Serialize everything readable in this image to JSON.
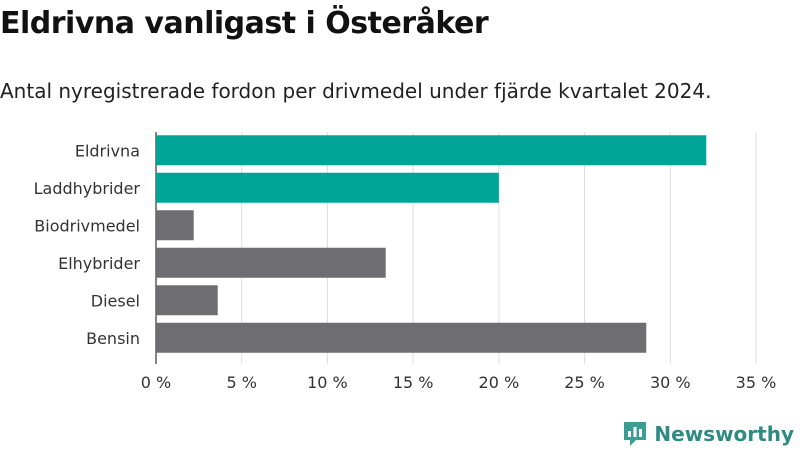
{
  "header": {
    "title": "Eldrivna vanligast i Österåker",
    "subtitle": "Antal nyregistrerade fordon per drivmedel under fjärde kvartalet 2024."
  },
  "brand": {
    "name": "Newsworthy",
    "color": "#3a9e94",
    "icon": "newsworthy-logo-icon"
  },
  "colors": {
    "highlight": "#00a598",
    "default": "#6e6d72",
    "grid": "#dddddd"
  },
  "chart_data": {
    "type": "bar",
    "orientation": "horizontal",
    "title": "Eldrivna vanligast i Österåker",
    "subtitle": "Antal nyregistrerade fordon per drivmedel under fjärde kvartalet 2024.",
    "xlabel": "",
    "ylabel": "",
    "unit": "%",
    "categories": [
      "Eldrivna",
      "Laddhybrider",
      "Biodrivmedel",
      "Elhybrider",
      "Diesel",
      "Bensin"
    ],
    "values": [
      32.1,
      20.0,
      2.2,
      13.4,
      3.6,
      28.6
    ],
    "highlighted": [
      true,
      true,
      false,
      false,
      false,
      false
    ],
    "xlim": [
      0,
      35
    ],
    "ticks": [
      0,
      5,
      10,
      15,
      20,
      25,
      30,
      35
    ],
    "tick_labels": [
      "0 %",
      "5 %",
      "10 %",
      "15 %",
      "20 %",
      "25 %",
      "30 %",
      "35 %"
    ],
    "grid": true
  }
}
